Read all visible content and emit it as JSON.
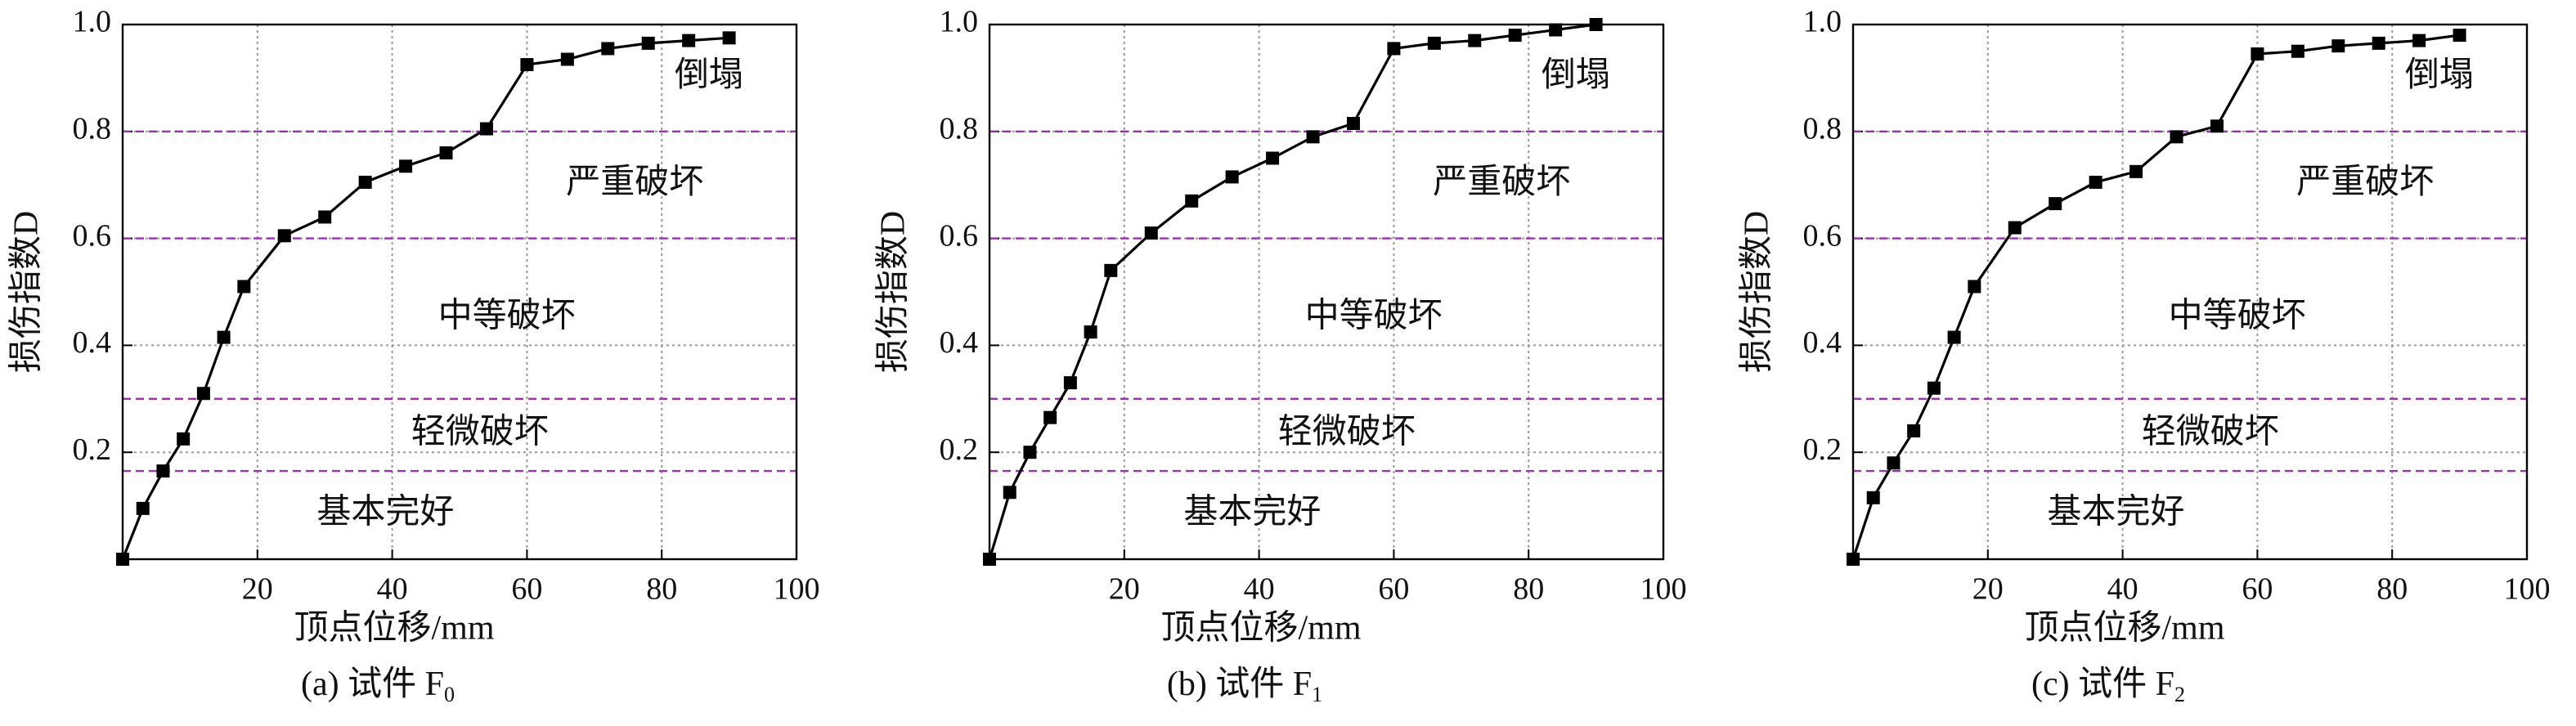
{
  "chart_data": [
    {
      "type": "line",
      "caption": "(a) 试件 F",
      "caption_subscript": "0",
      "xlabel": "顶点位移/mm",
      "ylabel": "损伤指数D",
      "x": [
        0,
        3,
        6,
        9,
        12,
        15,
        18,
        24,
        30,
        36,
        42,
        48,
        54,
        60,
        66,
        72,
        78,
        84,
        90
      ],
      "series": [
        {
          "color": "#000000",
          "values": [
            0,
            0.095,
            0.165,
            0.225,
            0.31,
            0.415,
            0.51,
            0.605,
            0.64,
            0.705,
            0.735,
            0.76,
            0.805,
            0.925,
            0.935,
            0.955,
            0.965,
            0.97,
            0.975
          ]
        }
      ],
      "xlim": [
        0,
        100
      ],
      "xticks": [
        20,
        40,
        60,
        80,
        100
      ],
      "ylim": [
        0,
        1
      ],
      "yticks": [
        0.2,
        0.4,
        0.6,
        0.8,
        {
          "value": 1,
          "label": "1.0"
        }
      ],
      "grid": true,
      "thresholds": [
        0.165,
        0.3,
        0.6,
        0.8
      ],
      "threshold_color": "#9b30b0",
      "zones": [
        "基本完好",
        "轻微破坏",
        "中等破坏",
        "严重破坏",
        "倒塌"
      ]
    },
    {
      "type": "line",
      "caption": "(b) 试件 F",
      "caption_subscript": "1",
      "xlabel": "顶点位移/mm",
      "ylabel": "损伤指数D",
      "x": [
        0,
        3,
        6,
        9,
        12,
        15,
        18,
        24,
        30,
        36,
        42,
        48,
        54,
        60,
        66,
        72,
        78,
        84,
        90
      ],
      "series": [
        {
          "color": "#000000",
          "values": [
            0,
            0.125,
            0.2,
            0.265,
            0.33,
            0.425,
            0.54,
            0.61,
            0.67,
            0.715,
            0.75,
            0.79,
            0.815,
            0.955,
            0.965,
            0.97,
            0.98,
            0.99,
            1.0
          ]
        }
      ],
      "xlim": [
        0,
        100
      ],
      "xticks": [
        20,
        40,
        60,
        80,
        100
      ],
      "ylim": [
        0,
        1
      ],
      "yticks": [
        0.2,
        0.4,
        0.6,
        0.8,
        {
          "value": 1,
          "label": "1.0"
        }
      ],
      "grid": true,
      "thresholds": [
        0.165,
        0.3,
        0.6,
        0.8
      ],
      "threshold_color": "#9b30b0",
      "zones": [
        "基本完好",
        "轻微破坏",
        "中等破坏",
        "严重破坏",
        "倒塌"
      ]
    },
    {
      "type": "line",
      "caption": "(c) 试件 F",
      "caption_subscript": "2",
      "xlabel": "顶点位移/mm",
      "ylabel": "损伤指数D",
      "x": [
        0,
        3,
        6,
        9,
        12,
        15,
        18,
        24,
        30,
        36,
        42,
        48,
        54,
        60,
        66,
        72,
        78,
        84,
        90
      ],
      "series": [
        {
          "color": "#000000",
          "values": [
            0,
            0.115,
            0.18,
            0.24,
            0.32,
            0.415,
            0.51,
            0.62,
            0.665,
            0.705,
            0.725,
            0.79,
            0.81,
            0.945,
            0.95,
            0.96,
            0.965,
            0.97,
            0.98
          ]
        }
      ],
      "xlim": [
        0,
        100
      ],
      "xticks": [
        20,
        40,
        60,
        80,
        100
      ],
      "ylim": [
        0,
        1
      ],
      "yticks": [
        0.2,
        0.4,
        0.6,
        0.8,
        {
          "value": 1,
          "label": "1.0"
        }
      ],
      "grid": true,
      "thresholds": [
        0.165,
        0.3,
        0.6,
        0.8
      ],
      "threshold_color": "#9b30b0",
      "zones": [
        "基本完好",
        "轻微破坏",
        "中等破坏",
        "严重破坏",
        "倒塌"
      ]
    }
  ]
}
